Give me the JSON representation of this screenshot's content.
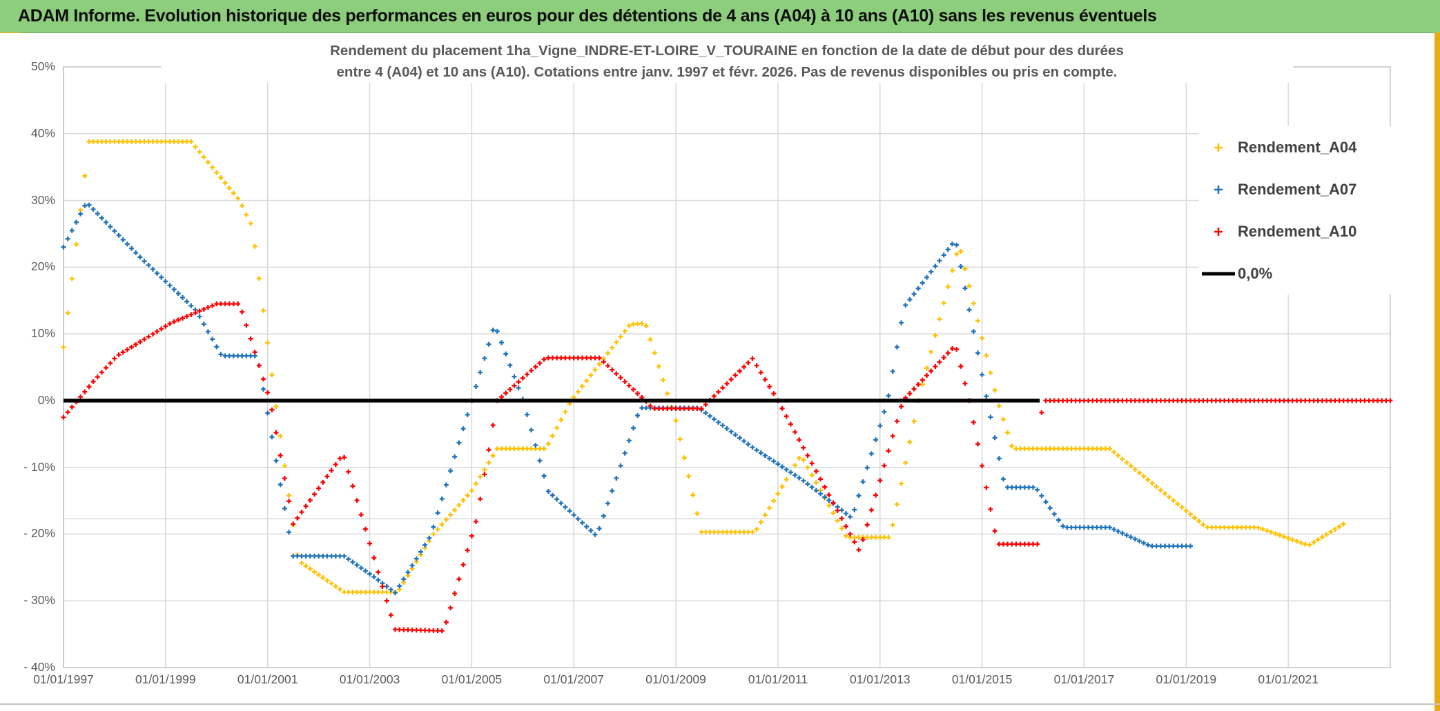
{
  "header": {
    "title": "ADAM Informe. Evolution historique des performances en euros pour des détentions de 4 ans (A04) à 10 ans (A10) sans les revenus éventuels"
  },
  "colors": {
    "header_background": "#8DCE7C",
    "gold_accent": "#E8AC1A",
    "grid": "#D6D6D6",
    "plot_border": "#BFBFBF",
    "axis_text": "#595959",
    "title_text": "#595959",
    "series_a04": "#FFC000",
    "series_a07": "#1F72BC",
    "series_a10": "#FF0000",
    "zero_line": "#000000"
  },
  "chart_data": {
    "type": "scatter",
    "marker": "plus",
    "points_interval": "monthly (values interpolated between keypoints)",
    "title_lines": [
      "Rendement du placement 1ha_Vigne_INDRE-ET-LOIRE_V_TOURAINE en fonction de la date de début pour des durées",
      "entre 4 (A04) et 10 ans (A10). Cotations entre janv. 1997 et févr. 2026. Pas de revenus disponibles ou pris en compte."
    ],
    "x_axis": {
      "min_year": 1997.0,
      "max_year": 2023.0,
      "tick_years": [
        1997,
        1999,
        2001,
        2003,
        2005,
        2007,
        2009,
        2011,
        2013,
        2015,
        2017,
        2019,
        2021
      ],
      "tick_labels": [
        "01/01/1997",
        "01/01/1999",
        "01/01/2001",
        "01/01/2003",
        "01/01/2005",
        "01/01/2007",
        "01/01/2009",
        "01/01/2011",
        "01/01/2013",
        "01/01/2015",
        "01/01/2017",
        "01/01/2019",
        "01/01/2021"
      ]
    },
    "y_axis": {
      "min": -40,
      "max": 50,
      "ticks": [
        {
          "label": "50%",
          "value": 50
        },
        {
          "label": "40%",
          "value": 40
        },
        {
          "label": "30%",
          "value": 30
        },
        {
          "label": "20%",
          "value": 20
        },
        {
          "label": "10%",
          "value": 10
        },
        {
          "label": "0%",
          "value": 0
        },
        {
          "label": "- 10%",
          "value": -10
        },
        {
          "label": "- 20%",
          "value": -20
        },
        {
          "label": "- 30%",
          "value": -30
        },
        {
          "label": "- 40%",
          "value": -40
        }
      ],
      "gridline_values": [
        40,
        30,
        20,
        10,
        -10,
        -20,
        -30
      ],
      "extra_gridline_value": -17.7
    },
    "legend": [
      {
        "label": "Rendement_A04",
        "color": "#FFC000",
        "marker": "plus"
      },
      {
        "label": "Rendement_A07",
        "color": "#1F72BC",
        "marker": "plus"
      },
      {
        "label": "Rendement_A10",
        "color": "#FF0000",
        "marker": "plus"
      },
      {
        "label": "0,0%",
        "color": "#000000",
        "marker": "line"
      }
    ],
    "zero_line": {
      "label": "0,0%",
      "value": 0,
      "from_year": 1997.0,
      "to_year": 2016.13,
      "color": "#000000"
    },
    "series": [
      {
        "name": "Rendement_A04",
        "color": "#FFC000",
        "keypoints": [
          [
            1997.0,
            8
          ],
          [
            1997.5,
            38.8
          ],
          [
            1999.5,
            38.8
          ],
          [
            2000.45,
            30
          ],
          [
            2000.7,
            26
          ],
          [
            2001.15,
            0
          ],
          [
            2001.6,
            -24
          ],
          [
            2002.5,
            -28.7
          ],
          [
            2003.55,
            -28.7
          ],
          [
            2004.25,
            -20
          ],
          [
            2005.0,
            -13.5
          ],
          [
            2005.5,
            -7.2
          ],
          [
            2006.45,
            -7.2
          ],
          [
            2006.95,
            0
          ],
          [
            2008.1,
            11.4
          ],
          [
            2008.4,
            11.6
          ],
          [
            2009.0,
            -3
          ],
          [
            2009.5,
            -19.7
          ],
          [
            2010.55,
            -19.7
          ],
          [
            2011.45,
            -8.2
          ],
          [
            2012.35,
            -20.5
          ],
          [
            2013.2,
            -20.5
          ],
          [
            2013.75,
            0
          ],
          [
            2014.55,
            23.4
          ],
          [
            2015.3,
            0
          ],
          [
            2015.6,
            -7.2
          ],
          [
            2017.5,
            -7.2
          ],
          [
            2019.4,
            -19
          ],
          [
            2020.4,
            -19
          ],
          [
            2021.4,
            -21.7
          ],
          [
            2022.15,
            -18.2
          ]
        ]
      },
      {
        "name": "Rendement_A07",
        "color": "#1F72BC",
        "keypoints": [
          [
            1997.0,
            23
          ],
          [
            1997.45,
            29.7
          ],
          [
            1998.5,
            21.5
          ],
          [
            1999.6,
            13.5
          ],
          [
            2000.1,
            6.7
          ],
          [
            2000.8,
            6.7
          ],
          [
            2001.5,
            -23.3
          ],
          [
            2002.5,
            -23.3
          ],
          [
            2003.1,
            -26.5
          ],
          [
            2003.5,
            -28.8
          ],
          [
            2004.2,
            -20.2
          ],
          [
            2005.0,
            0
          ],
          [
            2005.45,
            11.4
          ],
          [
            2006.0,
            0.2
          ],
          [
            2006.5,
            -13.6
          ],
          [
            2007.45,
            -20.3
          ],
          [
            2008.3,
            -1.1
          ],
          [
            2009.45,
            -1.1
          ],
          [
            2010.5,
            -7
          ],
          [
            2011.5,
            -12
          ],
          [
            2012.45,
            -17.6
          ],
          [
            2013.15,
            0
          ],
          [
            2013.47,
            14
          ],
          [
            2014.48,
            24.1
          ],
          [
            2015.1,
            0
          ],
          [
            2015.45,
            -13
          ],
          [
            2016.05,
            -13
          ],
          [
            2016.6,
            -19
          ],
          [
            2017.5,
            -19
          ],
          [
            2018.3,
            -21.8
          ],
          [
            2019.15,
            -21.8
          ]
        ]
      },
      {
        "name": "Rendement_A10",
        "color": "#FF0000",
        "keypoints": [
          [
            1997.0,
            -2.5
          ],
          [
            1997.6,
            3
          ],
          [
            1998.05,
            6.7
          ],
          [
            1999.1,
            11.6
          ],
          [
            2000.0,
            14.5
          ],
          [
            2000.45,
            14.5
          ],
          [
            2001.05,
            0
          ],
          [
            2001.5,
            -18.5
          ],
          [
            2002.48,
            -8
          ],
          [
            2003.5,
            -34.3
          ],
          [
            2004.45,
            -34.5
          ],
          [
            2005.1,
            -17.7
          ],
          [
            2005.5,
            0
          ],
          [
            2006.45,
            6.4
          ],
          [
            2007.5,
            6.4
          ],
          [
            2008.4,
            0
          ],
          [
            2008.55,
            -1.2
          ],
          [
            2009.5,
            -1.2
          ],
          [
            2010.5,
            6.3
          ],
          [
            2011.0,
            0
          ],
          [
            2012.6,
            -22.6
          ],
          [
            2013.45,
            0
          ],
          [
            2014.48,
            8.3
          ],
          [
            2014.75,
            0
          ],
          [
            2015.3,
            -21.5
          ],
          [
            2016.13,
            -21.5
          ],
          [
            2016.17,
            0
          ],
          [
            2023.0,
            0
          ]
        ]
      }
    ]
  }
}
